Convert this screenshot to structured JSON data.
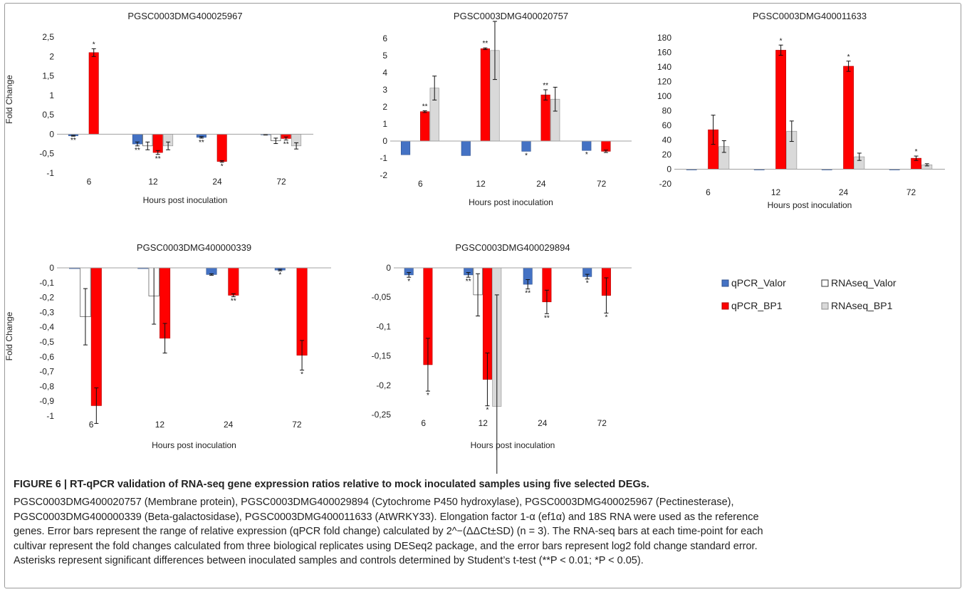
{
  "figure": {
    "colors": {
      "qpcr_valor": "#4472c4",
      "rnaseq_valor": "#ffffff",
      "qpcr_bp1": "#ff0000",
      "rnaseq_bp1": "#d9d9d9"
    },
    "legend": [
      "qPCR_Valor",
      "RNAseq_Valor",
      "qPCR_BP1",
      "RNAseq_BP1"
    ],
    "caption_title": "FIGURE 6 | RT-qPCR validation of RNA-seq gene expression ratios relative to mock inoculated samples using five selected DEGs.",
    "caption_lines": [
      "PGSC0003DMG400020757 (Membrane protein), PGSC0003DMG400029894 (Cytochrome P450 hydroxylase), PGSC0003DMG400025967 (Pectinesterase),",
      "PGSC0003DMG400000339 (Beta-galactosidase), PGSC0003DMG400011633 (AtWRKY33). Elongation factor 1-α (ef1α) and 18S RNA were used as the reference",
      "genes. Error bars represent the range of relative expression (qPCR fold change) calculated by 2^−(ΔΔCt±SD) (n = 3). The RNA-seq bars at each time-point for each",
      "cultivar represent the fold changes calculated from three biological replicates using DESeq2 package, and the error bars represent log2 fold change standard error.",
      "Asterisks represent significant differences between inoculated samples and controls determined by Student’s t-test (**P < 0.01; *P < 0.05)."
    ]
  },
  "chart_data": [
    {
      "type": "bar",
      "title": "PGSC0003DMG400025967",
      "xlabel": "Hours post inoculation",
      "ylabel": "Fold Change",
      "categories": [
        "6",
        "12",
        "24",
        "72"
      ],
      "ylim": [
        -1,
        2.5
      ],
      "yticks": [
        "-1",
        "-0,5",
        "0",
        "0,5",
        "1",
        "1,5",
        "2",
        "2,5"
      ],
      "series": [
        {
          "name": "qPCR_Valor",
          "values": [
            -0.04,
            -0.25,
            -0.08,
            -0.01
          ],
          "err": [
            0.01,
            0.05,
            0.02,
            0.01
          ],
          "stars": [
            "**",
            "**",
            "**",
            ""
          ]
        },
        {
          "name": "RNAseq_Valor",
          "values": [
            0,
            -0.3,
            0,
            -0.17
          ],
          "err": [
            0,
            0.1,
            0,
            0.07
          ],
          "stars": [
            "",
            "",
            "",
            ""
          ]
        },
        {
          "name": "qPCR_BP1",
          "values": [
            2.1,
            -0.47,
            -0.7,
            -0.11
          ],
          "err": [
            0.1,
            0.05,
            0.02,
            0.04
          ],
          "stars": [
            "*",
            "**",
            "*",
            "**"
          ]
        },
        {
          "name": "RNAseq_BP1",
          "values": [
            0,
            -0.3,
            0,
            -0.3
          ],
          "err": [
            0,
            0.1,
            0,
            0.08
          ],
          "stars": [
            "",
            "",
            "",
            ""
          ]
        }
      ]
    },
    {
      "type": "bar",
      "title": "PGSC0003DMG400020757",
      "xlabel": "Hours post inoculation",
      "ylabel": "",
      "categories": [
        "6",
        "12",
        "24",
        "72"
      ],
      "ylim": [
        -2,
        6
      ],
      "yticks": [
        "-2",
        "-1",
        "0",
        "1",
        "2",
        "3",
        "4",
        "5",
        "6"
      ],
      "series": [
        {
          "name": "qPCR_Valor",
          "values": [
            -0.8,
            -0.85,
            -0.6,
            -0.55
          ],
          "err": [
            0,
            0,
            0,
            0
          ],
          "stars": [
            "",
            "",
            "*",
            "*"
          ]
        },
        {
          "name": "RNAseq_Valor",
          "values": [
            0,
            0,
            0,
            0
          ],
          "err": [
            0,
            0,
            0,
            0
          ],
          "stars": [
            "",
            "",
            "",
            ""
          ]
        },
        {
          "name": "qPCR_BP1",
          "values": [
            1.72,
            5.4,
            2.7,
            -0.6
          ],
          "err": [
            0.05,
            0.05,
            0.3,
            0.07
          ],
          "stars": [
            "**",
            "**",
            "**",
            ""
          ]
        },
        {
          "name": "RNAseq_BP1",
          "values": [
            3.1,
            5.3,
            2.45,
            0
          ],
          "err": [
            0.7,
            1.7,
            0.7,
            0
          ],
          "stars": [
            "",
            "",
            "",
            ""
          ]
        }
      ]
    },
    {
      "type": "bar",
      "title": "PGSC0003DMG400011633",
      "xlabel": "Hours post inoculation",
      "ylabel": "",
      "categories": [
        "6",
        "12",
        "24",
        "72"
      ],
      "ylim": [
        -20,
        180
      ],
      "yticks": [
        "-20",
        "0",
        "20",
        "40",
        "60",
        "80",
        "100",
        "120",
        "140",
        "160",
        "180"
      ],
      "series": [
        {
          "name": "qPCR_Valor",
          "values": [
            -1,
            -1,
            -1,
            -1
          ],
          "err": [
            0,
            0,
            0,
            0
          ],
          "stars": [
            "",
            "",
            "",
            ""
          ]
        },
        {
          "name": "RNAseq_Valor",
          "values": [
            0,
            0,
            0,
            0
          ],
          "err": [
            0,
            0,
            0,
            0
          ],
          "stars": [
            "",
            "",
            "",
            ""
          ]
        },
        {
          "name": "qPCR_BP1",
          "values": [
            54,
            163,
            141,
            15
          ],
          "err": [
            20,
            7,
            7,
            3
          ],
          "stars": [
            "",
            "*",
            "*",
            "*"
          ]
        },
        {
          "name": "RNAseq_BP1",
          "values": [
            31,
            52,
            17,
            6
          ],
          "err": [
            8,
            14,
            5,
            1.5
          ],
          "stars": [
            "",
            "",
            "",
            ""
          ]
        }
      ]
    },
    {
      "type": "bar",
      "title": "PGSC0003DMG400000339",
      "xlabel": "Hours post inoculation",
      "ylabel": "Fold Change",
      "categories": [
        "6",
        "12",
        "24",
        "72"
      ],
      "ylim": [
        -1,
        0
      ],
      "yticks": [
        "-1",
        "-0,9",
        "-0,8",
        "-0,7",
        "-0,6",
        "-0,5",
        "-0,4",
        "-0,3",
        "-0,2",
        "-0,1",
        "0"
      ],
      "series": [
        {
          "name": "qPCR_Valor",
          "values": [
            -0.005,
            -0.005,
            -0.045,
            -0.015
          ],
          "err": [
            0,
            0,
            0.005,
            0.005
          ],
          "stars": [
            "",
            "",
            "",
            "*"
          ]
        },
        {
          "name": "RNAseq_Valor",
          "values": [
            -0.33,
            -0.19,
            0,
            0
          ],
          "err": [
            0.19,
            0.19,
            0,
            0
          ],
          "stars": [
            "",
            "",
            "",
            ""
          ]
        },
        {
          "name": "qPCR_BP1",
          "values": [
            -0.93,
            -0.475,
            -0.185,
            -0.59
          ],
          "err": [
            0.12,
            0.1,
            0.01,
            0.1
          ],
          "stars": [
            "",
            "",
            "**",
            "*"
          ]
        },
        {
          "name": "RNAseq_BP1",
          "values": [
            0,
            0,
            0,
            0
          ],
          "err": [
            0,
            0,
            0,
            0
          ],
          "stars": [
            "",
            "",
            "",
            ""
          ]
        }
      ]
    },
    {
      "type": "bar",
      "title": "PGSC0003DMG400029894",
      "xlabel": "Hours post inoculation",
      "ylabel": "",
      "categories": [
        "6",
        "12",
        "24",
        "72"
      ],
      "ylim": [
        -0.25,
        0
      ],
      "yticks": [
        "-0,25",
        "-0,2",
        "-0,15",
        "-0,1",
        "-0,05",
        "0"
      ],
      "series": [
        {
          "name": "qPCR_Valor",
          "values": [
            -0.012,
            -0.012,
            -0.028,
            -0.015
          ],
          "err": [
            0.004,
            0.004,
            0.008,
            0.004
          ],
          "stars": [
            "*",
            "**",
            "**",
            "*"
          ]
        },
        {
          "name": "RNAseq_Valor",
          "values": [
            0,
            -0.046,
            0,
            0
          ],
          "err": [
            0,
            0.036,
            0,
            0
          ],
          "stars": [
            "",
            "",
            "",
            ""
          ]
        },
        {
          "name": "qPCR_BP1",
          "values": [
            -0.165,
            -0.19,
            -0.058,
            -0.047
          ],
          "err": [
            0.045,
            0.045,
            0.02,
            0.03
          ],
          "stars": [
            "*",
            "*",
            "**",
            "*"
          ]
        },
        {
          "name": "RNAseq_BP1",
          "values": [
            0,
            -0.236,
            0,
            0
          ],
          "err": [
            0,
            0.19,
            0,
            0
          ],
          "stars": [
            "",
            "",
            "",
            ""
          ]
        }
      ]
    }
  ]
}
